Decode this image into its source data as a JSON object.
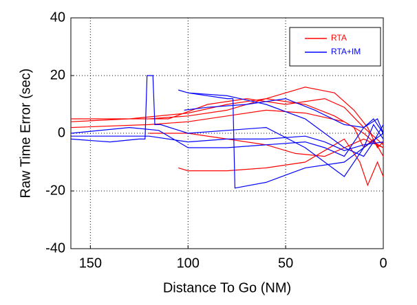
{
  "chart_data": {
    "type": "line",
    "xlabel": "Distance To Go (NM)",
    "ylabel": "Raw Time Error (sec)",
    "xlim": [
      160,
      0
    ],
    "xticks": [
      150,
      100,
      50,
      0
    ],
    "ylim": [
      -40,
      40
    ],
    "yticks": [
      -40,
      -20,
      0,
      20,
      40
    ],
    "grid": true,
    "legend": "upper right",
    "series": [
      {
        "name": "RTA",
        "color": "#ff0000",
        "x": [
          160,
          120,
          100,
          80,
          60,
          40,
          25,
          15,
          8,
          3,
          0,
          null,
          160,
          130,
          100,
          80,
          60,
          40,
          25,
          15,
          10,
          5,
          0,
          null,
          105,
          100,
          80,
          60,
          40,
          30,
          20,
          12,
          8,
          3,
          0,
          null,
          160,
          120,
          100,
          80,
          60,
          40,
          20,
          10,
          5,
          0,
          null,
          120,
          100,
          80,
          60,
          45,
          30,
          20,
          10,
          0,
          null,
          160,
          110,
          90,
          70,
          50,
          30,
          20,
          10,
          0
        ],
        "values": [
          5,
          5,
          6,
          8,
          12,
          16,
          14,
          8,
          2,
          -5,
          -3,
          null,
          4,
          5,
          7,
          10,
          12,
          10,
          6,
          2,
          -5,
          -2,
          -8,
          null,
          -12,
          -13,
          -13,
          -12,
          -10,
          -6,
          -2,
          -10,
          -18,
          -10,
          -15,
          null,
          2,
          3,
          4,
          6,
          8,
          7,
          4,
          0,
          -3,
          -5,
          null,
          0,
          0,
          -2,
          -4,
          -7,
          -8,
          -5,
          -2,
          -5,
          null,
          5,
          5,
          10,
          12,
          10,
          12,
          9,
          2,
          -4
        ]
      },
      {
        "name": "RTA+IM",
        "color": "#0000ff",
        "x": [
          160,
          140,
          125,
          122,
          121,
          118,
          117,
          114,
          100,
          80,
          60,
          40,
          20,
          10,
          5,
          0,
          null,
          105,
          100,
          80,
          77,
          76,
          60,
          40,
          20,
          10,
          0,
          null,
          160,
          130,
          115,
          100,
          80,
          60,
          40,
          30,
          20,
          10,
          5,
          0,
          null,
          100,
          80,
          60,
          40,
          30,
          20,
          10,
          5,
          0,
          null,
          160,
          120,
          100,
          80,
          60,
          40,
          30,
          20,
          10,
          0,
          null,
          102,
          90,
          70,
          50,
          35,
          20,
          10,
          3,
          0
        ],
        "values": [
          -2,
          -3,
          -2,
          -2,
          20,
          20,
          3,
          3,
          0,
          1,
          2,
          -5,
          -15,
          -5,
          3,
          -2,
          null,
          15,
          14,
          12,
          12,
          -19,
          -17,
          -12,
          -10,
          -5,
          0,
          null,
          0,
          2,
          1,
          -5,
          -5,
          -4,
          -3,
          -5,
          -8,
          2,
          5,
          0,
          null,
          14,
          13,
          10,
          5,
          0,
          -5,
          -8,
          -3,
          3,
          null,
          -1,
          -1,
          -3,
          -2,
          -2,
          -1,
          -3,
          -6,
          -4,
          -3,
          null,
          8,
          9,
          10,
          12,
          8,
          3,
          2,
          5,
          0
        ]
      }
    ]
  }
}
